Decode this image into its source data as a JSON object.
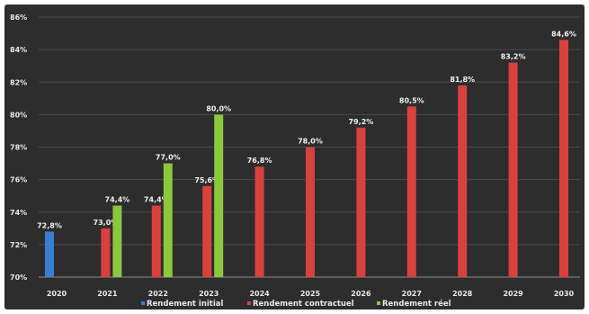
{
  "chart_data": {
    "type": "bar",
    "categories": [
      "2020",
      "2021",
      "2022",
      "2023",
      "2024",
      "2025",
      "2026",
      "2027",
      "2028",
      "2029",
      "2030"
    ],
    "series": [
      {
        "name": "Rendement initial",
        "color": "#3a7fcf",
        "values": [
          72.8,
          null,
          null,
          null,
          null,
          null,
          null,
          null,
          null,
          null,
          null
        ],
        "labels": [
          "72,8%",
          "",
          "",
          "",
          "",
          "",
          "",
          "",
          "",
          "",
          ""
        ]
      },
      {
        "name": "Rendement contractuel",
        "color": "#d9413d",
        "values": [
          null,
          73.0,
          74.4,
          75.6,
          76.8,
          78.0,
          79.2,
          80.5,
          81.8,
          83.2,
          84.6
        ],
        "labels": [
          "",
          "73,0%",
          "74,4%",
          "75,6%",
          "76,8%",
          "78,0%",
          "79,2%",
          "80,5%",
          "81,8%",
          "83,2%",
          "84,6%"
        ]
      },
      {
        "name": "Rendement réel",
        "color": "#8dc63f",
        "values": [
          null,
          74.4,
          77.0,
          80.0,
          null,
          null,
          null,
          null,
          null,
          null,
          null
        ],
        "labels": [
          "",
          "74,4%",
          "77,0%",
          "80,0%",
          "",
          "",
          "",
          "",
          "",
          "",
          ""
        ]
      }
    ],
    "yticks": [
      "70%",
      "72%",
      "74%",
      "76%",
      "78%",
      "80%",
      "82%",
      "84%",
      "86%"
    ],
    "ylim": [
      70,
      86
    ],
    "grid": true,
    "legend": "bottom"
  }
}
